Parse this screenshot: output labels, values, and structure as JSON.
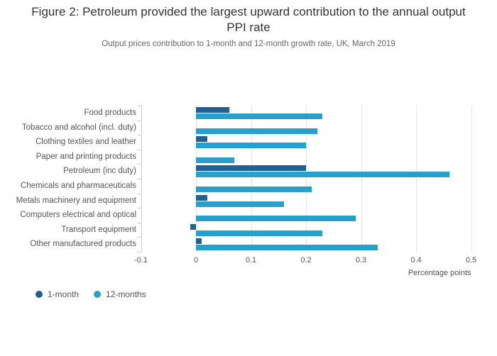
{
  "figure": {
    "title": "Figure 2: Petroleum provided the largest upward contribution to the annual output PPI rate",
    "subtitle": "Output prices contribution to 1-month and 12-month growth rate, UK, March 2019"
  },
  "chart_data": {
    "type": "bar",
    "orientation": "horizontal",
    "categories": [
      "Food products",
      "Tobacco and alcohol (incl. duty)",
      "Clothing textiles and leather",
      "Paper and printing products",
      "Petroleum (inc duty)",
      "Chemicals and pharmaceuticals",
      "Metals machinery and equipment",
      "Computers electrical and optical",
      "Transport equipment",
      "Other manufactured products"
    ],
    "series": [
      {
        "name": "1-month",
        "color": "#206095",
        "values": [
          0.06,
          0,
          0.02,
          0,
          0.2,
          0,
          0.02,
          0,
          -0.01,
          0.01
        ]
      },
      {
        "name": "12-months",
        "color": "#27A0CC",
        "values": [
          0.23,
          0.22,
          0.2,
          0.07,
          0.46,
          0.21,
          0.16,
          0.29,
          0.23,
          0.33
        ]
      }
    ],
    "xlabel": "Percentage points",
    "ylabel": "",
    "xlim": [
      -0.1,
      0.5
    ],
    "xticks": [
      -0.1,
      0,
      0.1,
      0.2,
      0.3,
      0.4,
      0.5
    ],
    "xtick_labels": [
      "-0.1",
      "0",
      "0.1",
      "0.2",
      "0.3",
      "0.4",
      "0.5"
    ],
    "grid": true,
    "background": "#ffffff",
    "grid_color": "#e2e2e2",
    "axis_color": "#c3cfe6",
    "text_color": "#555555",
    "legend_position": "bottom-left"
  }
}
